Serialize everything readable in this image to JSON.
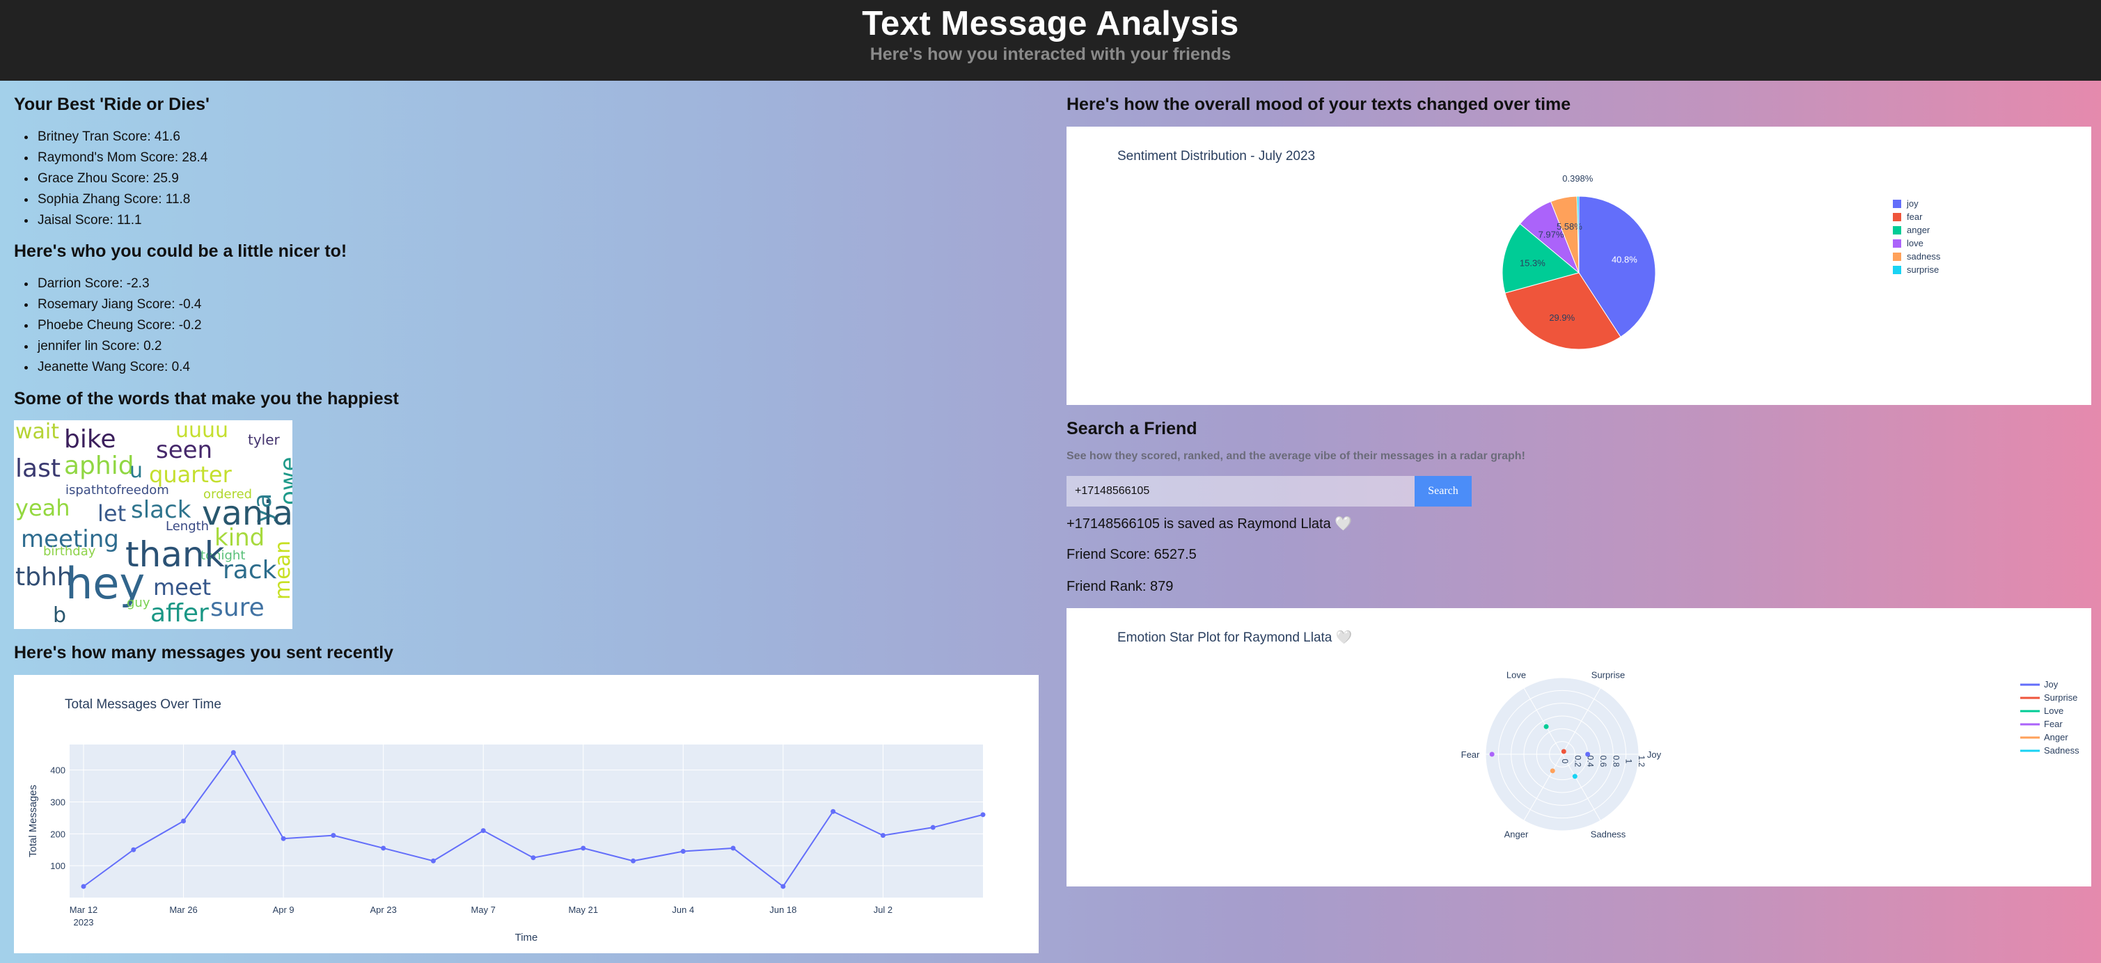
{
  "header": {
    "title": "Text Message Analysis",
    "subtitle": "Here's how you interacted with your friends"
  },
  "best": {
    "title": "Your Best 'Ride or Dies'",
    "items": [
      "Britney Tran Score: 41.6",
      "Raymond's Mom Score: 28.4",
      "Grace Zhou Score: 25.9",
      "Sophia Zhang Score: 11.8",
      "Jaisal Score: 11.1"
    ]
  },
  "nicer": {
    "title": "Here's who you could be a little nicer to!",
    "items": [
      "Darrion Score: -2.3",
      "Rosemary Jiang Score: -0.4",
      "Phoebe Cheung Score: -0.2",
      "jennifer lin Score: 0.2",
      "Jeanette Wang Score: 0.4"
    ]
  },
  "words": {
    "title": "Some of the words that make you the happiest",
    "cloud": [
      "wait",
      "bike",
      "uuuu",
      "tyler",
      "owe",
      "ya",
      "seen",
      "last",
      "aphid",
      "u",
      "quarter",
      "ispathtofreedom",
      "ordered",
      "yeah",
      "let",
      "slack",
      "vania",
      "meeting",
      "Length",
      "kind",
      "birthday",
      "tonight",
      "thank",
      "tbhh",
      "hey",
      "meet",
      "rack",
      "mean",
      "guy",
      "b",
      "affer",
      "sure"
    ]
  },
  "messages": {
    "title": "Here's how many messages you sent recently"
  },
  "mood": {
    "title": "Here's how the overall mood of your texts changed over time"
  },
  "search": {
    "title": "Search a Friend",
    "hint": "See how they scored, ranked, and the average vibe of their messages in a radar graph!",
    "input_value": "+17148566105",
    "button_label": "Search",
    "saved_as": "+17148566105 is saved as Raymond Llata 🤍",
    "score": "Friend Score: 6527.5",
    "rank": "Friend Rank: 879"
  },
  "chart_data": [
    {
      "type": "line",
      "title": "Total Messages Over Time",
      "xlabel": "Time",
      "ylabel": "Total Messages",
      "x": [
        "2023-03-12",
        "2023-03-19",
        "2023-03-26",
        "2023-04-02",
        "2023-04-09",
        "2023-04-16",
        "2023-04-23",
        "2023-04-30",
        "2023-05-07",
        "2023-05-14",
        "2023-05-21",
        "2023-05-28",
        "2023-06-04",
        "2023-06-11",
        "2023-06-18",
        "2023-06-25",
        "2023-07-02",
        "2023-07-09",
        "2023-07-16"
      ],
      "values": [
        35,
        150,
        240,
        455,
        185,
        195,
        155,
        115,
        210,
        125,
        155,
        115,
        145,
        155,
        35,
        270,
        195,
        220,
        260
      ],
      "xticks": [
        "Mar 12",
        "Mar 26",
        "Apr 9",
        "Apr 23",
        "May 7",
        "May 21",
        "Jun 4",
        "Jun 18",
        "Jul 2"
      ],
      "xticks_year": "2023",
      "yticks": [
        "100",
        "200",
        "300",
        "400"
      ],
      "ylim": [
        0,
        480
      ],
      "grid": true,
      "color": "#636efa"
    },
    {
      "type": "pie",
      "title": "Sentiment Distribution - July 2023",
      "labels": [
        "joy",
        "fear",
        "anger",
        "love",
        "sadness",
        "surprise"
      ],
      "values": [
        40.8,
        29.9,
        15.3,
        7.97,
        5.58,
        0.398
      ],
      "value_labels": [
        "40.8%",
        "29.9%",
        "15.3%",
        "7.97%",
        "5.58%",
        "0.398%"
      ],
      "colors": [
        "#636efa",
        "#ef553b",
        "#00cc96",
        "#ab63fa",
        "#ffa15a",
        "#19d3f3"
      ],
      "legend": "right"
    },
    {
      "type": "radar",
      "title": "Emotion Star Plot for Raymond Llata 🤍",
      "axes": [
        "Joy",
        "Surprise",
        "Love",
        "Fear",
        "Anger",
        "Sadness"
      ],
      "radial_ticks": [
        "0",
        "0.2",
        "0.4",
        "0.6",
        "0.8",
        "1",
        "1.2"
      ],
      "series": [
        {
          "name": "Joy",
          "values": [
            0.4,
            0,
            0,
            0,
            0,
            0
          ],
          "color": "#636efa"
        },
        {
          "name": "Surprise",
          "values": [
            0,
            0.05,
            0,
            0,
            0,
            0
          ],
          "color": "#ef553b"
        },
        {
          "name": "Love",
          "values": [
            0,
            0,
            0.5,
            0,
            0,
            0
          ],
          "color": "#00cc96"
        },
        {
          "name": "Fear",
          "values": [
            0,
            0,
            0,
            1.1,
            0,
            0
          ],
          "color": "#ab63fa"
        },
        {
          "name": "Anger",
          "values": [
            0,
            0,
            0,
            0,
            0.3,
            0
          ],
          "color": "#ffa15a"
        },
        {
          "name": "Sadness",
          "values": [
            0,
            0,
            0,
            0,
            0,
            0.4
          ],
          "color": "#19d3f3"
        }
      ],
      "legend": "right"
    }
  ]
}
